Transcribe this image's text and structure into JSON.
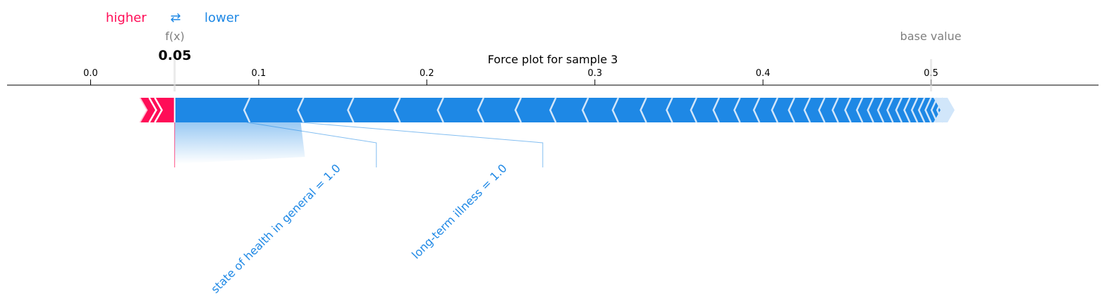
{
  "chart_data": {
    "type": "force",
    "title": "Force plot for sample 3",
    "legend": {
      "higher": "higher",
      "arrow": "⇄",
      "lower": "lower",
      "placement": "top-left"
    },
    "fx_label": "f(x)",
    "fx_value": 0.05,
    "fx_value_text": "0.05",
    "base_value_label": "base value",
    "base_value": 0.5,
    "xlim": [
      -0.05,
      0.6
    ],
    "ticks": [
      {
        "value": 0.0,
        "label": "0.0"
      },
      {
        "value": 0.1,
        "label": "0.1"
      },
      {
        "value": 0.2,
        "label": "0.2"
      },
      {
        "value": 0.3,
        "label": "0.3"
      },
      {
        "value": 0.4,
        "label": "0.4"
      },
      {
        "value": 0.5,
        "label": "0.5"
      }
    ],
    "positive_bar": {
      "start": 0.034,
      "end": 0.05
    },
    "negative_bar": {
      "start": 0.05,
      "end": 0.514
    },
    "labeled_features": [
      {
        "label": "state of health in general = 1.0",
        "start": 0.05,
        "end": 0.093,
        "anchor": 0.17
      },
      {
        "label": "long-term illness = 1.0",
        "start": 0.093,
        "end": 0.125,
        "anchor": 0.269
      }
    ],
    "colors": {
      "positive": "#ff0d57",
      "positive_light": "#ffc3d5",
      "negative": "#1e88e5",
      "negative_light": "#d1e6fa",
      "grey": "#7f7f7f"
    }
  }
}
